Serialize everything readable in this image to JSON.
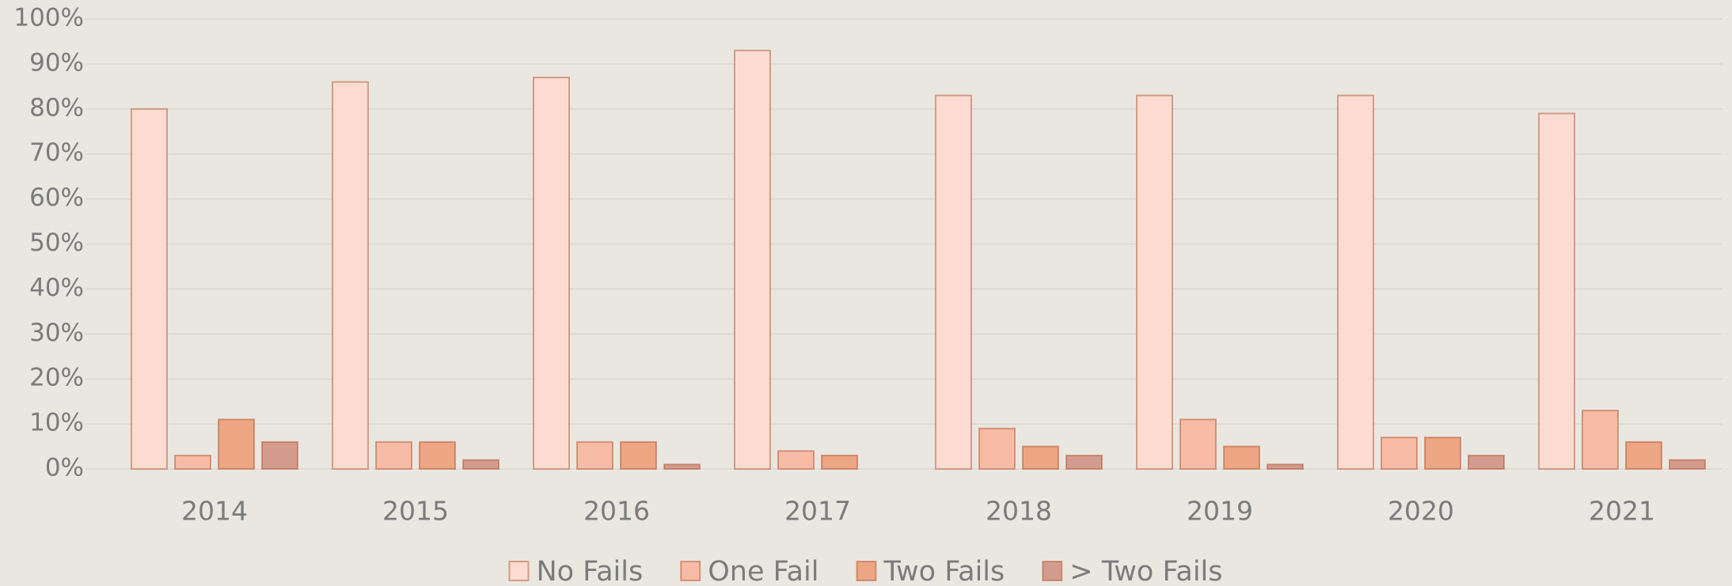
{
  "chart_data": {
    "type": "bar",
    "categories": [
      "2014",
      "2015",
      "2016",
      "2017",
      "2018",
      "2019",
      "2020",
      "2021"
    ],
    "series": [
      {
        "name": "No Fails",
        "color": "#fcdcd2",
        "values": [
          80,
          86,
          87,
          93,
          83,
          83,
          83,
          79
        ]
      },
      {
        "name": "One Fail",
        "color": "#f8bca6",
        "values": [
          3,
          6,
          6,
          4,
          9,
          11,
          7,
          13
        ]
      },
      {
        "name": "Two Fails",
        "color": "#eda684",
        "values": [
          11,
          6,
          6,
          3,
          5,
          5,
          7,
          6
        ]
      },
      {
        "name": "> Two Fails",
        "color": "#d49c8e",
        "values": [
          6,
          2,
          1,
          0,
          3,
          1,
          3,
          2
        ]
      }
    ],
    "ylim": [
      0,
      100
    ],
    "yticks": [
      {
        "value": 0,
        "label": "0%"
      },
      {
        "value": 10,
        "label": "10%"
      },
      {
        "value": 20,
        "label": "20%"
      },
      {
        "value": 30,
        "label": "30%"
      },
      {
        "value": 40,
        "label": "40%"
      },
      {
        "value": 50,
        "label": "50%"
      },
      {
        "value": 60,
        "label": "60%"
      },
      {
        "value": 70,
        "label": "70%"
      },
      {
        "value": 80,
        "label": "80%"
      },
      {
        "value": 90,
        "label": "90%"
      },
      {
        "value": 100,
        "label": "100%"
      }
    ],
    "grid": true,
    "legend": "bottom"
  }
}
